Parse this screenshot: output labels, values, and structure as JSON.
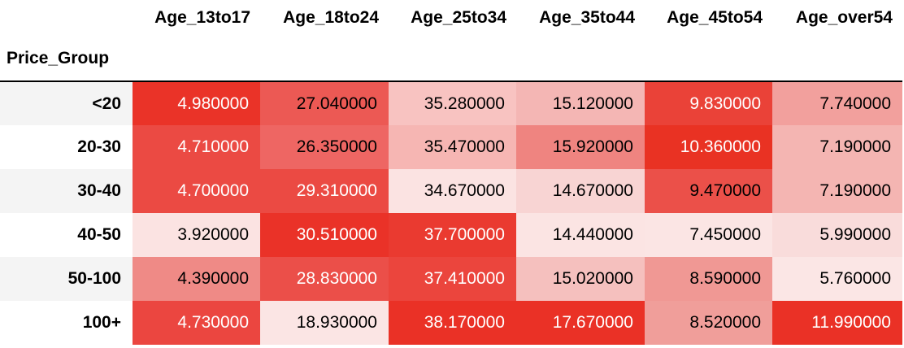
{
  "table": {
    "index_name": "Price_Group",
    "columns": [
      "Age_13to17",
      "Age_18to24",
      "Age_25to34",
      "Age_35to44",
      "Age_45to54",
      "Age_over54"
    ],
    "rows": [
      {
        "label": "<20",
        "cells": [
          {
            "text": "4.980000",
            "bg": "#ea3328",
            "fg": "#ffffff"
          },
          {
            "text": "27.040000",
            "bg": "#ec5954",
            "fg": "#000000"
          },
          {
            "text": "35.280000",
            "bg": "#f8c3c1",
            "fg": "#000000"
          },
          {
            "text": "15.120000",
            "bg": "#f4b6b4",
            "fg": "#000000"
          },
          {
            "text": "9.830000",
            "bg": "#ea4238",
            "fg": "#ffffff"
          },
          {
            "text": "7.740000",
            "bg": "#f2a09d",
            "fg": "#000000"
          }
        ]
      },
      {
        "label": "20-30",
        "cells": [
          {
            "text": "4.710000",
            "bg": "#eb4a43",
            "fg": "#ffffff"
          },
          {
            "text": "26.350000",
            "bg": "#ee6663",
            "fg": "#000000"
          },
          {
            "text": "35.470000",
            "bg": "#f6b6b3",
            "fg": "#000000"
          },
          {
            "text": "15.920000",
            "bg": "#ef8480",
            "fg": "#000000"
          },
          {
            "text": "10.360000",
            "bg": "#e93223",
            "fg": "#ffffff"
          },
          {
            "text": "7.190000",
            "bg": "#f4b5b2",
            "fg": "#000000"
          }
        ]
      },
      {
        "label": "30-40",
        "cells": [
          {
            "text": "4.700000",
            "bg": "#eb4a43",
            "fg": "#ffffff"
          },
          {
            "text": "29.310000",
            "bg": "#eb4a43",
            "fg": "#ffffff"
          },
          {
            "text": "34.670000",
            "bg": "#fbe3e2",
            "fg": "#000000"
          },
          {
            "text": "14.670000",
            "bg": "#f8d4d3",
            "fg": "#000000"
          },
          {
            "text": "9.470000",
            "bg": "#eb5049",
            "fg": "#000000"
          },
          {
            "text": "7.190000",
            "bg": "#f4b5b2",
            "fg": "#000000"
          }
        ]
      },
      {
        "label": "40-50",
        "cells": [
          {
            "text": "3.920000",
            "bg": "#fbe3e2",
            "fg": "#000000"
          },
          {
            "text": "30.510000",
            "bg": "#ea3228",
            "fg": "#ffffff"
          },
          {
            "text": "37.700000",
            "bg": "#ea3a30",
            "fg": "#ffffff"
          },
          {
            "text": "14.440000",
            "bg": "#fbe4e3",
            "fg": "#000000"
          },
          {
            "text": "7.450000",
            "bg": "#fbe5e4",
            "fg": "#000000"
          },
          {
            "text": "5.990000",
            "bg": "#f9dcdb",
            "fg": "#000000"
          }
        ]
      },
      {
        "label": "50-100",
        "cells": [
          {
            "text": "4.390000",
            "bg": "#ef8a86",
            "fg": "#000000"
          },
          {
            "text": "28.830000",
            "bg": "#eb4f49",
            "fg": "#ffffff"
          },
          {
            "text": "37.410000",
            "bg": "#eb453d",
            "fg": "#ffffff"
          },
          {
            "text": "15.020000",
            "bg": "#f5c0be",
            "fg": "#000000"
          },
          {
            "text": "8.590000",
            "bg": "#f09894",
            "fg": "#000000"
          },
          {
            "text": "5.760000",
            "bg": "#fbe6e5",
            "fg": "#000000"
          }
        ]
      },
      {
        "label": "100+",
        "cells": [
          {
            "text": "4.730000",
            "bg": "#eb4640",
            "fg": "#ffffff"
          },
          {
            "text": "18.930000",
            "bg": "#fbe5e4",
            "fg": "#000000"
          },
          {
            "text": "38.170000",
            "bg": "#ea3126",
            "fg": "#ffffff"
          },
          {
            "text": "17.670000",
            "bg": "#ea3126",
            "fg": "#ffffff"
          },
          {
            "text": "8.520000",
            "bg": "#f09e9a",
            "fg": "#000000"
          },
          {
            "text": "11.990000",
            "bg": "#ea3126",
            "fg": "#ffffff"
          }
        ]
      }
    ]
  }
}
